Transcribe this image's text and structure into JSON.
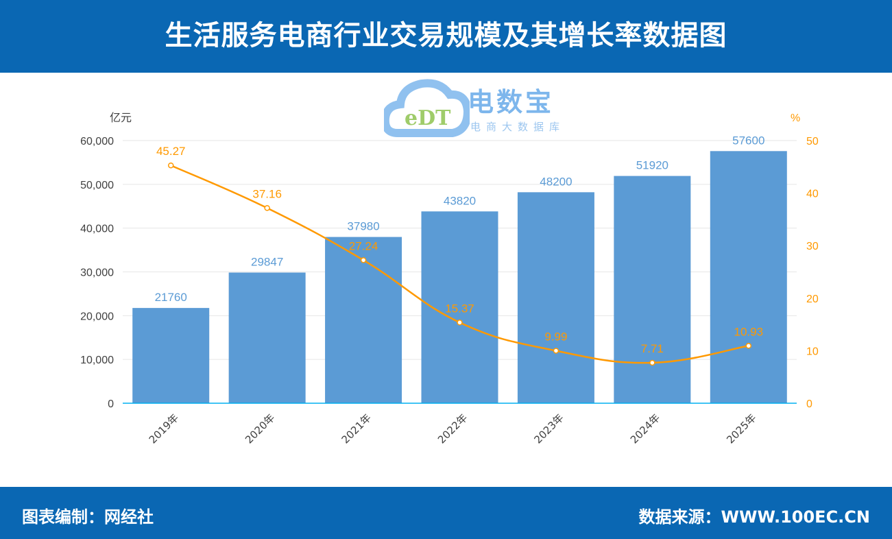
{
  "header": {
    "title": "生活服务电商行业交易规模及其增长率数据图"
  },
  "footer": {
    "left": "图表编制：网经社",
    "right": "数据来源：WWW.100EC.CN"
  },
  "logo": {
    "name": "电数宝",
    "tagline": "电商大数据库",
    "mark": "eDT"
  },
  "colors": {
    "bar": "#5b9bd5",
    "line": "#ff9900",
    "header": "#0a67b3",
    "axis": "#00b0f0"
  },
  "chart_data": {
    "type": "bar+line",
    "categories": [
      "2019年",
      "2020年",
      "2021年",
      "2022年",
      "2023年",
      "2024年",
      "2025年"
    ],
    "series": [
      {
        "type": "bar",
        "axis": "left",
        "values": [
          21760,
          29847,
          37980,
          43820,
          48200,
          51920,
          57600
        ]
      },
      {
        "type": "line",
        "axis": "right",
        "values": [
          45.27,
          37.16,
          27.24,
          15.37,
          9.99,
          7.71,
          10.93
        ]
      }
    ],
    "left_axis": {
      "unit": "亿元",
      "ylim": [
        0,
        60000
      ],
      "ticks": [
        "0",
        "10,000",
        "20,000",
        "30,000",
        "40,000",
        "50,000",
        "60,000"
      ]
    },
    "right_axis": {
      "unit": "%",
      "ylim": [
        0,
        50
      ],
      "ticks": [
        "0",
        "10",
        "20",
        "30",
        "40",
        "50"
      ]
    },
    "grid": true,
    "legend": "none"
  }
}
